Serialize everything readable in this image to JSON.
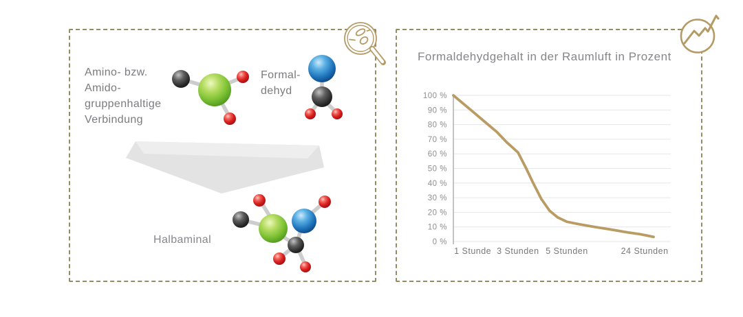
{
  "reaction_panel": {
    "compound_label": [
      "Amino- bzw.",
      "Amido-",
      "gruppenhaltige",
      "Verbindung"
    ],
    "formaldehyde_label": [
      "Formal-",
      "dehyd"
    ],
    "product_label": "Halbaminal",
    "icon": "magnifier-molecules-icon"
  },
  "chart_panel": {
    "title": "Formaldehydgehalt in der Raumluft in Prozent",
    "icon": "trend-line-circle-icon"
  },
  "chart_data": {
    "type": "line",
    "title": "Formaldehydgehalt in der Raumluft in Prozent",
    "categories": [
      "1 Stunde",
      "3 Stunden",
      "5 Stunden",
      "24 Stunden"
    ],
    "category_positions": [
      0.089,
      0.297,
      0.522,
      0.88
    ],
    "values_at_categories": [
      89,
      61,
      13.5,
      3.5
    ],
    "start_value": 100,
    "ylim": [
      0,
      100
    ],
    "ytick_step": 10,
    "ytick_labels": [
      "100 %",
      "90 %",
      "80 %",
      "70 %",
      "60 %",
      "50 %",
      "40 %",
      "30 %",
      "20 %",
      "10 %",
      "0 %"
    ],
    "grid": true,
    "legend": false,
    "series": [
      {
        "name": "Formaldehydgehalt",
        "points": [
          [
            0.0,
            100
          ],
          [
            0.089,
            88.9
          ],
          [
            0.15,
            81.2
          ],
          [
            0.2,
            75
          ],
          [
            0.245,
            68
          ],
          [
            0.297,
            61
          ],
          [
            0.335,
            50
          ],
          [
            0.367,
            40
          ],
          [
            0.405,
            29
          ],
          [
            0.443,
            21
          ],
          [
            0.48,
            16.5
          ],
          [
            0.522,
            13.5
          ],
          [
            0.58,
            11.8
          ],
          [
            0.65,
            10
          ],
          [
            0.72,
            8.3
          ],
          [
            0.8,
            6.3
          ],
          [
            0.86,
            5
          ],
          [
            0.921,
            3.2
          ]
        ]
      }
    ]
  },
  "colors": {
    "accent_gold": "#b49a64",
    "chart_line": "#b99c63",
    "panel_border": "#938d66",
    "grid_line": "#e5e6e8",
    "axis_line": "#b3b4b6",
    "text_primary": "#7a7b7e",
    "text_muted": "#86878b",
    "ytick_text": "#8d8e91",
    "xtick_text": "#77787a"
  }
}
